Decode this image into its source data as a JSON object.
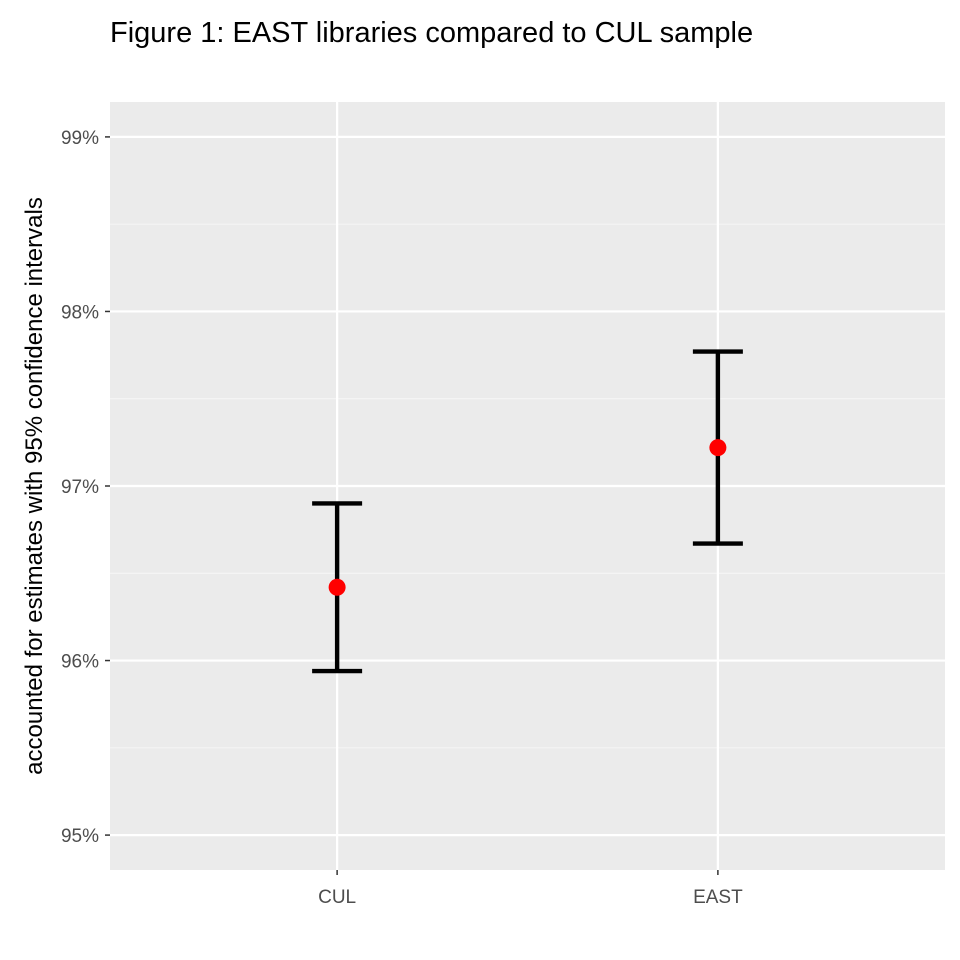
{
  "chart_data": {
    "type": "errorbar",
    "title": "Figure 1: EAST libraries compared to CUL sample",
    "xlabel": "",
    "ylabel": "accounted for estimates with 95% confidence intervals",
    "categories": [
      "CUL",
      "EAST"
    ],
    "estimates": [
      96.42,
      97.22
    ],
    "lower": [
      95.94,
      96.67
    ],
    "upper": [
      96.9,
      97.77
    ],
    "ylim": [
      94.8,
      99.2
    ],
    "yticks": [
      95,
      96,
      97,
      98,
      99
    ],
    "ytick_labels": [
      "95%",
      "96%",
      "97%",
      "98%",
      "99%"
    ],
    "grid": true,
    "colors": {
      "panel_background": "#ebebeb",
      "major_grid": "#ffffff",
      "minor_grid": "#f5f5f5",
      "point": "#ff0000",
      "errorbar": "#000000",
      "tick_label": "#4d4d4d"
    }
  }
}
